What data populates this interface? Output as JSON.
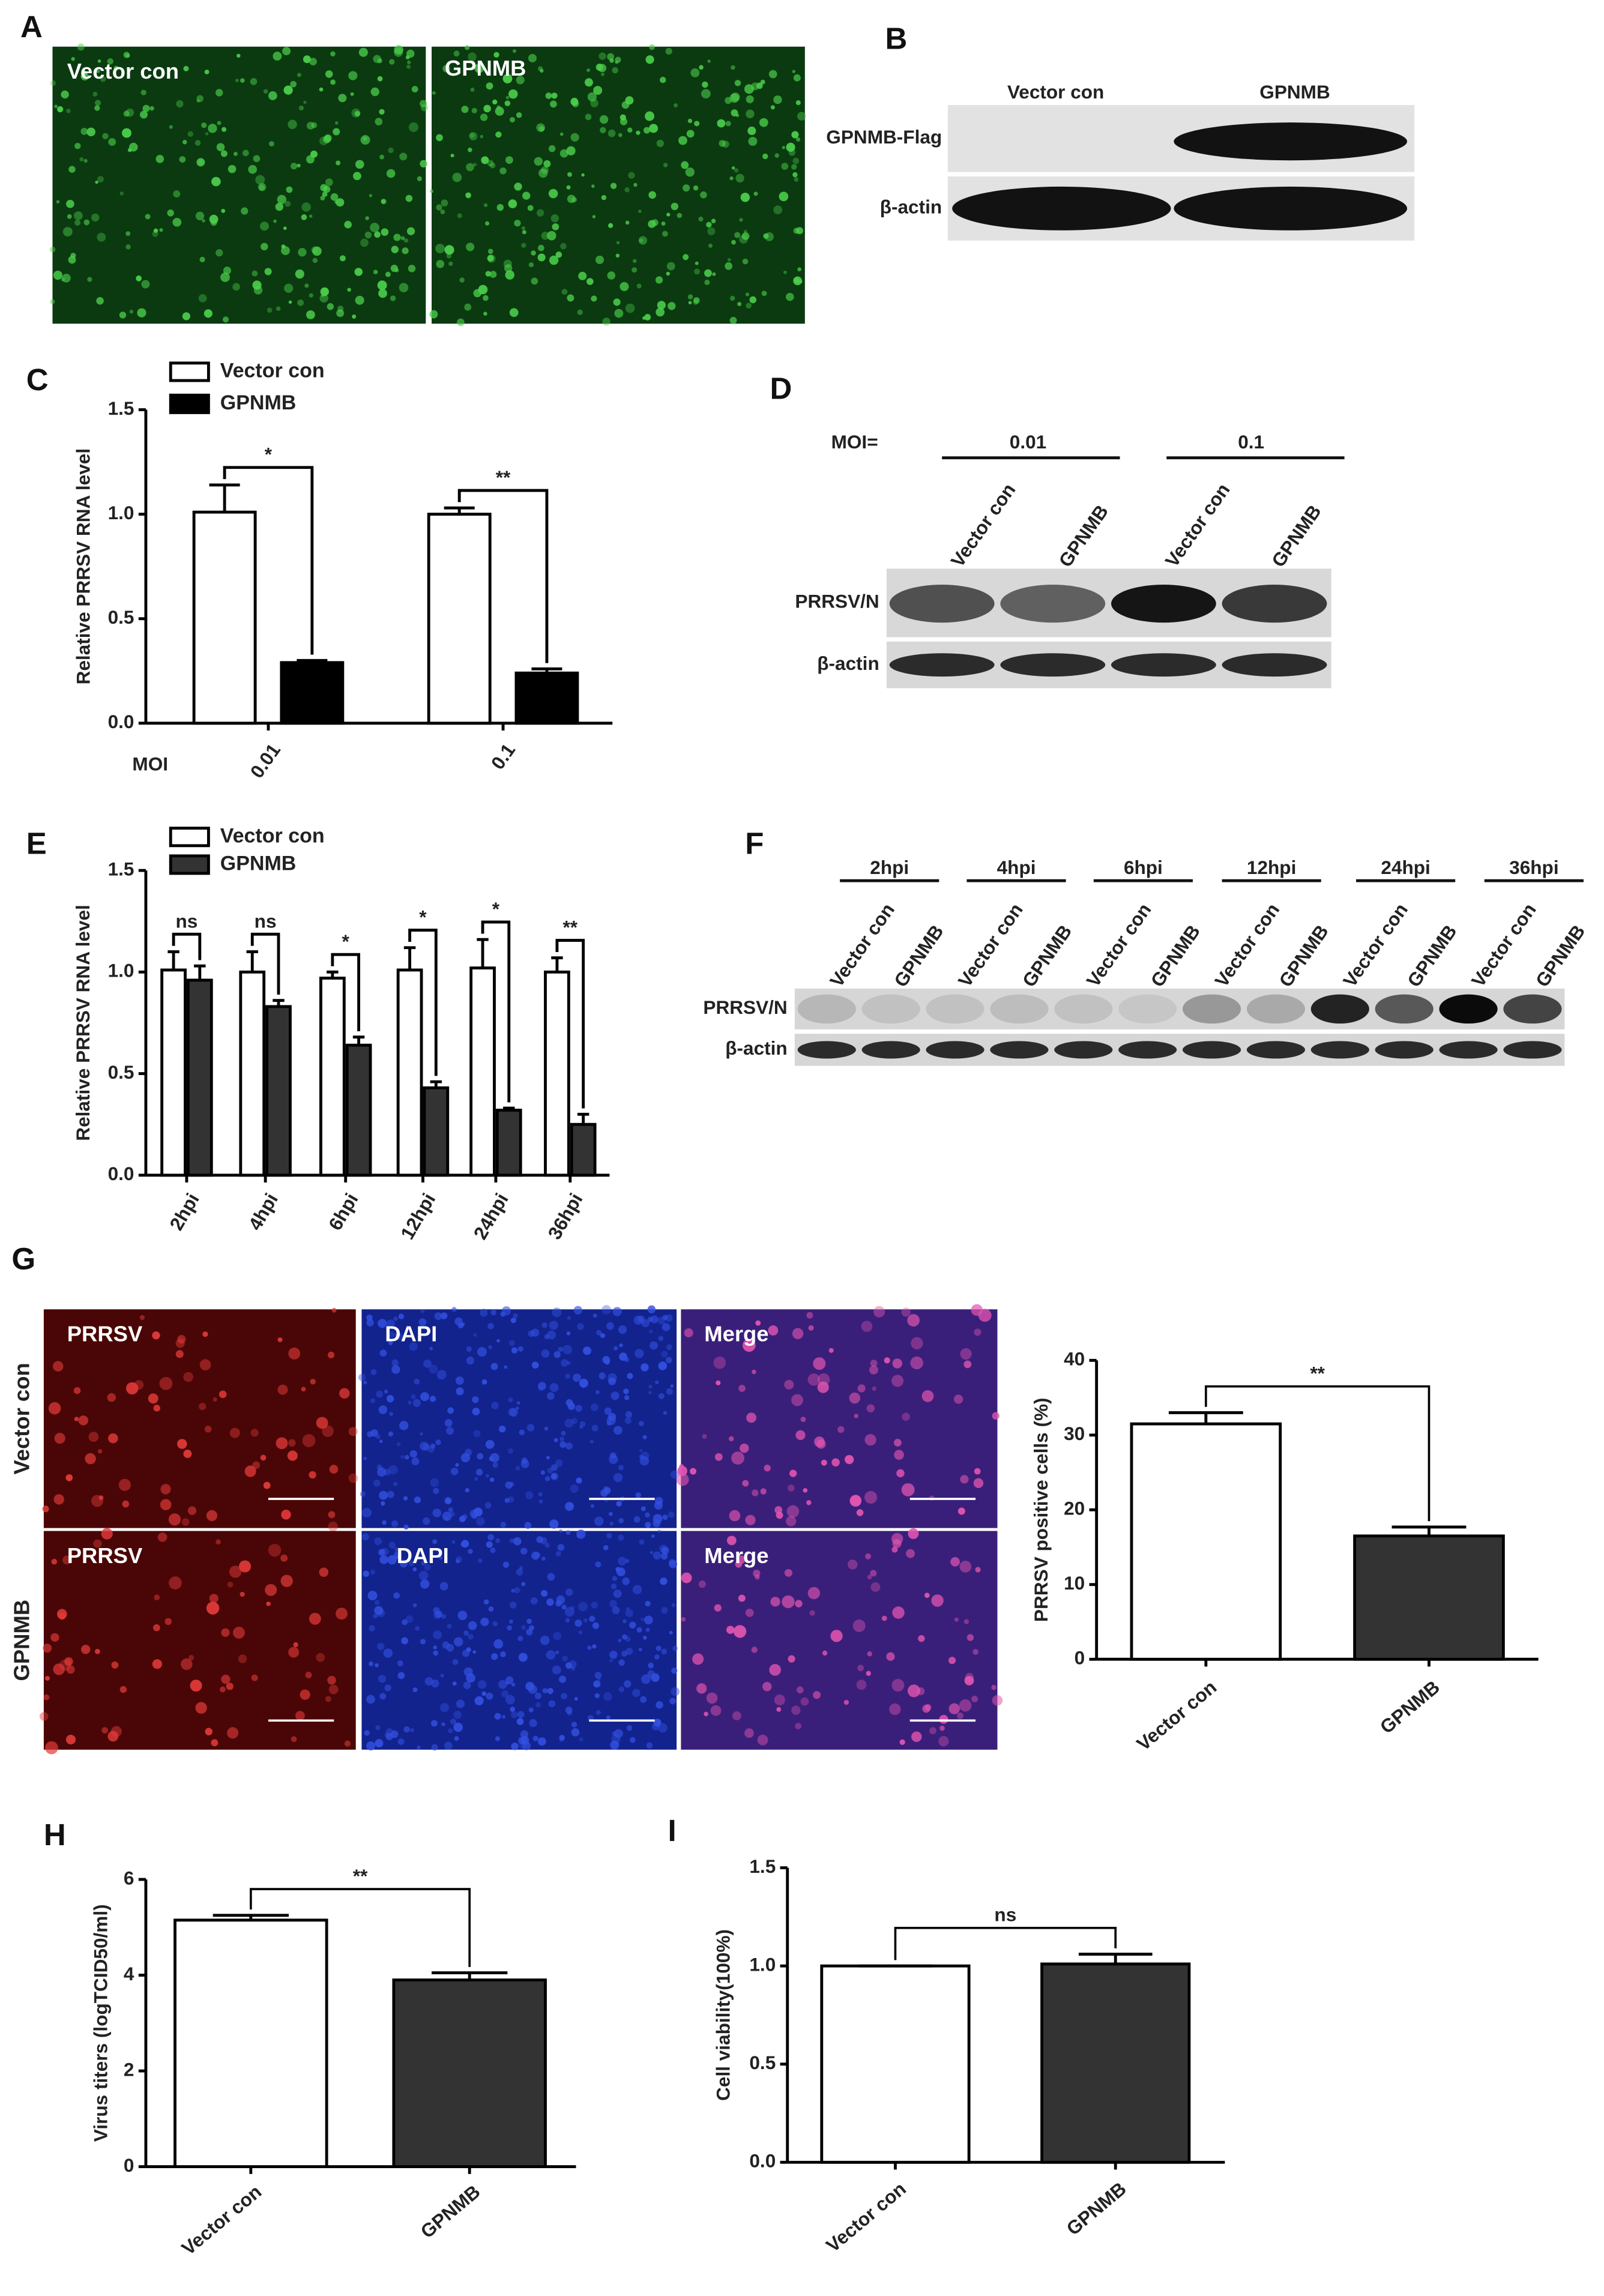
{
  "images_a": {
    "panel": "A",
    "labels": [
      "Vector con",
      "GPNMB"
    ]
  },
  "blot_b": {
    "panel": "B",
    "lanes": [
      "Vector con",
      "GPNMB"
    ],
    "rows": [
      "GPNMB-Flag",
      "β-actin"
    ]
  },
  "blot_d": {
    "panel": "D",
    "moi_label": "MOI=",
    "groups": [
      "0.01",
      "0.1"
    ],
    "lanes": [
      "Vector con",
      "GPNMB",
      "Vector con",
      "GPNMB"
    ],
    "rows": [
      "PRRSV/N",
      "β-actin"
    ]
  },
  "blot_f": {
    "panel": "F",
    "groups": [
      "2hpi",
      "4hpi",
      "6hpi",
      "12hpi",
      "24hpi",
      "36hpi"
    ],
    "lanes": [
      "Vector con",
      "GPNMB",
      "Vector con",
      "GPNMB",
      "Vector con",
      "GPNMB",
      "Vector con",
      "GPNMB",
      "Vector con",
      "GPNMB",
      "Vector con",
      "GPNMB"
    ],
    "rows": [
      "PRRSV/N",
      "β-actin"
    ]
  },
  "images_g": {
    "panel": "G",
    "rows": [
      "Vector con",
      "GPNMB"
    ],
    "channels": [
      [
        "PRRSV",
        "DAPI",
        "Merge"
      ],
      [
        "PRRSV",
        "DAPI",
        "Merge"
      ]
    ]
  },
  "chart_data": [
    {
      "panel": "C",
      "type": "bar",
      "y_label": "Relative PRRSV RNA level",
      "x_label": "MOI",
      "categories": [
        "0.01",
        "0.1"
      ],
      "series": [
        {
          "name": "Vector con",
          "color": "#ffffff",
          "values": [
            1.01,
            1.0
          ],
          "errors": [
            0.13,
            0.03
          ]
        },
        {
          "name": "GPNMB",
          "color": "#000000",
          "values": [
            0.29,
            0.24
          ],
          "errors": [
            0.01,
            0.02
          ]
        }
      ],
      "ylim": [
        0,
        1.5
      ],
      "yticks": [
        {
          "value": 0,
          "label": "0.0"
        },
        0.5,
        {
          "value": 1,
          "label": "1.0"
        },
        1.5
      ],
      "annotations": [
        "*",
        "**"
      ],
      "legend": "top-left"
    },
    {
      "panel": "E",
      "type": "bar",
      "y_label": "Relative PRRSV RNA level",
      "categories": [
        "2hpi",
        "4hpi",
        "6hpi",
        "12hpi",
        "24hpi",
        "36hpi"
      ],
      "series": [
        {
          "name": "Vector con",
          "color": "#ffffff",
          "values": [
            1.01,
            1.0,
            0.97,
            1.01,
            1.02,
            1.0
          ],
          "errors": [
            0.09,
            0.1,
            0.03,
            0.11,
            0.14,
            0.07
          ]
        },
        {
          "name": "GPNMB",
          "color": "#333333",
          "values": [
            0.96,
            0.83,
            0.64,
            0.43,
            0.32,
            0.25
          ],
          "errors": [
            0.07,
            0.03,
            0.04,
            0.03,
            0.01,
            0.05
          ]
        }
      ],
      "ylim": [
        0,
        1.5
      ],
      "yticks": [
        {
          "value": 0,
          "label": "0.0"
        },
        0.5,
        {
          "value": 1,
          "label": "1.0"
        },
        1.5
      ],
      "annotations": [
        "ns",
        "ns",
        "*",
        "*",
        "*",
        "**"
      ],
      "legend": "top-left"
    },
    {
      "panel": "G",
      "type": "bar",
      "y_label": "PRRSV positive cells (%)",
      "categories": [
        "Vector con",
        "GPNMB"
      ],
      "values": [
        31.5,
        16.5
      ],
      "errors": [
        1.5,
        1.2
      ],
      "colors": [
        "#ffffff",
        "#333333"
      ],
      "ylim": [
        0,
        40
      ],
      "yticks": [
        0,
        10,
        20,
        30,
        40
      ],
      "annotations": [
        "**"
      ]
    },
    {
      "panel": "H",
      "type": "bar",
      "y_label": "Virus titers (logTCID50/ml)",
      "categories": [
        "Vector con",
        "GPNMB"
      ],
      "values": [
        5.15,
        3.9
      ],
      "errors": [
        0.1,
        0.15
      ],
      "colors": [
        "#ffffff",
        "#333333"
      ],
      "ylim": [
        0,
        6
      ],
      "yticks": [
        0,
        2,
        4,
        6
      ],
      "annotations": [
        "**"
      ]
    },
    {
      "panel": "I",
      "type": "bar",
      "y_label": "Cell viability(100%)",
      "categories": [
        "Vector con",
        "GPNMB"
      ],
      "values": [
        1.0,
        1.01
      ],
      "errors": [
        0,
        0.05
      ],
      "colors": [
        "#ffffff",
        "#333333"
      ],
      "ylim": [
        0,
        1.5
      ],
      "yticks": [
        {
          "value": 0,
          "label": "0.0"
        },
        0.5,
        {
          "value": 1,
          "label": "1.0"
        },
        1.5
      ],
      "annotations": [
        "ns"
      ]
    }
  ]
}
